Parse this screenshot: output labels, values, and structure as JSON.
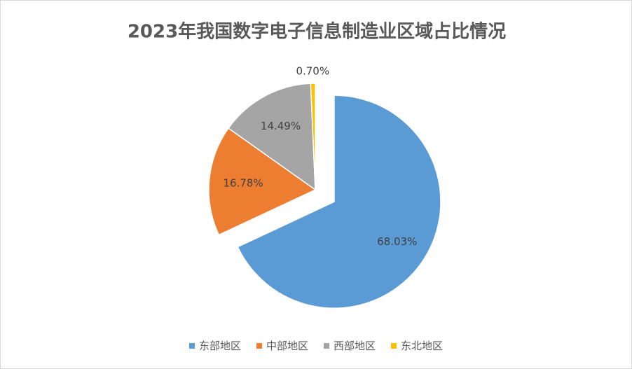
{
  "chart_data": {
    "type": "pie",
    "title": "2023年我国数字电子信息制造业区域占比情况",
    "categories": [
      "东部地区",
      "中部地区",
      "西部地区",
      "东北地区"
    ],
    "values": [
      68.03,
      16.78,
      14.49,
      0.7
    ],
    "value_labels": [
      "68.03%",
      "16.78%",
      "14.49%",
      "0.70%"
    ],
    "colors": [
      "#5b9bd5",
      "#ed7d31",
      "#a5a5a5",
      "#ffc000"
    ],
    "legend": "bottom"
  }
}
